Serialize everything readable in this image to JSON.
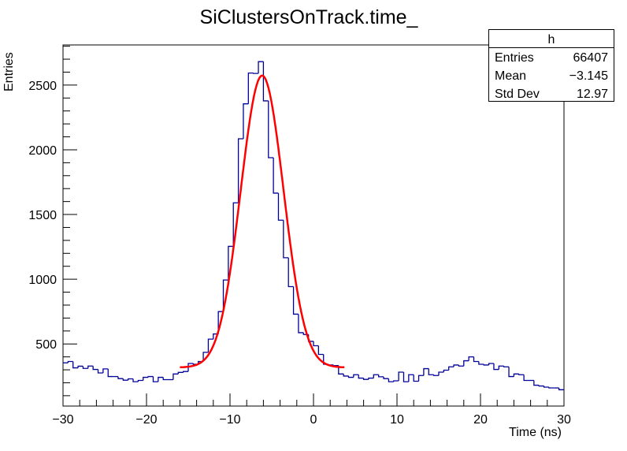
{
  "chart_data": {
    "type": "bar",
    "histogram_style": "step",
    "title": "SiClustersOnTrack.time_",
    "xlabel": "Time (ns)",
    "ylabel": "Entries",
    "xlim": [
      -30,
      30
    ],
    "ylim": [
      20,
      2810
    ],
    "grid": false,
    "x_ticks": [
      -30,
      -20,
      -10,
      0,
      10,
      20,
      30
    ],
    "y_ticks": [
      500,
      1000,
      1500,
      2000,
      2500
    ],
    "bin_width": 0.6,
    "series": [
      {
        "color": "#000099",
        "values": [
          354,
          364,
          315,
          328,
          311,
          329,
          303,
          276,
          307,
          248,
          248,
          232,
          220,
          230,
          208,
          218,
          242,
          248,
          208,
          242,
          224,
          224,
          268,
          280,
          287,
          349,
          343,
          364,
          435,
          537,
          577,
          750,
          994,
          1254,
          1590,
          2085,
          2355,
          2593,
          2590,
          2681,
          2378,
          1939,
          1665,
          1456,
          1166,
          943,
          730,
          587,
          573,
          520,
          486,
          419,
          343,
          337,
          333,
          268,
          252,
          242,
          262,
          236,
          226,
          236,
          262,
          246,
          232,
          208,
          215,
          282,
          208,
          262,
          212,
          256,
          309,
          262,
          256,
          282,
          297,
          323,
          337,
          329,
          370,
          400,
          364,
          343,
          337,
          349,
          303,
          329,
          323,
          248,
          268,
          262,
          218,
          218,
          181,
          175,
          166,
          160,
          160,
          146
        ]
      }
    ],
    "fit": {
      "function": "gaussian + constant",
      "color": "#ff0000",
      "range": [
        -16,
        3.7
      ],
      "constant": 318,
      "amplitude": 2255,
      "mean": -6.15,
      "sigma": 2.57
    },
    "stats_box": {
      "title": "h",
      "rows": [
        {
          "label": "Entries",
          "value": "66407"
        },
        {
          "label": "Mean",
          "value": "−3.145"
        },
        {
          "label": "Std Dev",
          "value": "12.97"
        }
      ]
    }
  }
}
